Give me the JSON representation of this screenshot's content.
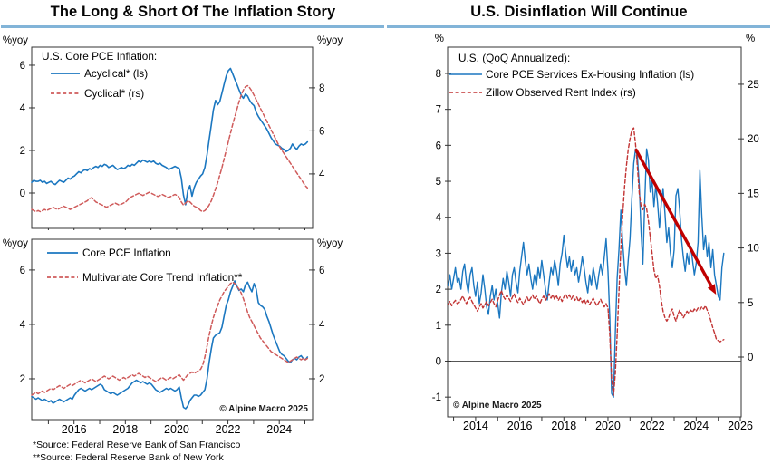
{
  "left_panel": {
    "title": "The Long & Short Of The Inflation Story",
    "footnotes": [
      "*Source: Federal Reserve Bank of San Francisco",
      "**Source: Federal Reserve Bank of New York"
    ]
  },
  "right_panel": {
    "title": "U.S. Disinflation Will Continue"
  },
  "copyright": "© Alpine Macro 2025",
  "colors": {
    "title_rule": "#82b4d8",
    "axis": "#333333",
    "blue": "#1b77c0",
    "red_soft": "#cf5b5b",
    "red_deep": "#c23434",
    "arrow": "#c00000"
  },
  "chart_data": [
    {
      "name": "us-core-pce-acyclical-vs-cyclical",
      "type": "line",
      "legend_heading": "U.S. Core PCE Inflation:",
      "x_range": [
        2014.35,
        2025.3
      ],
      "x_tick_labels": [
        2016,
        2018,
        2020,
        2022,
        2024
      ],
      "show_x_labels": false,
      "left_axis": {
        "label": "%yoy",
        "ticks": [
          0,
          2,
          4,
          6
        ],
        "range": [
          -1.66,
          6.85
        ]
      },
      "right_axis": {
        "label": "%yoy",
        "ticks": [
          4,
          6,
          8
        ],
        "range": [
          1.47,
          9.89
        ]
      },
      "zero_line": false,
      "series": [
        {
          "name": "Acyclical* (ls)",
          "axis": "left",
          "dashed": false,
          "color": "#1b77c0",
          "width": 1.6,
          "x_start": 2014.35,
          "x_step": 0.0833333,
          "y": [
            0.5,
            0.6,
            0.55,
            0.55,
            0.6,
            0.5,
            0.55,
            0.45,
            0.5,
            0.55,
            0.45,
            0.4,
            0.5,
            0.6,
            0.55,
            0.5,
            0.6,
            0.7,
            0.65,
            0.75,
            0.8,
            0.9,
            1.0,
            0.95,
            1.05,
            1.1,
            1.05,
            1.15,
            1.1,
            1.2,
            1.25,
            1.2,
            1.3,
            1.25,
            1.35,
            1.3,
            1.2,
            1.25,
            1.3,
            1.2,
            1.1,
            1.15,
            1.2,
            1.15,
            1.2,
            1.3,
            1.25,
            1.35,
            1.3,
            1.4,
            1.5,
            1.45,
            1.55,
            1.5,
            1.45,
            1.5,
            1.45,
            1.5,
            1.4,
            1.35,
            1.4,
            1.3,
            1.25,
            1.2,
            1.1,
            1.15,
            1.2,
            1.25,
            1.2,
            1.15,
            0.7,
            -0.1,
            -0.55,
            0.1,
            0.35,
            -0.15,
            0.25,
            0.5,
            0.65,
            0.8,
            0.9,
            1.2,
            1.8,
            2.5,
            3.2,
            3.9,
            4.35,
            4.15,
            4.3,
            4.7,
            5.1,
            5.5,
            5.75,
            5.85,
            5.6,
            5.35,
            5.1,
            4.85,
            4.6,
            4.45,
            4.65,
            4.55,
            4.35,
            4.2,
            4.1,
            3.8,
            3.6,
            3.45,
            3.3,
            3.15,
            3.0,
            2.8,
            2.6,
            2.45,
            2.3,
            2.25,
            2.2,
            2.1,
            2.05,
            1.95,
            2.0,
            2.1,
            2.3,
            2.15,
            2.05,
            2.2,
            2.3,
            2.25,
            2.3,
            2.4
          ]
        },
        {
          "name": "Cyclical* (rs)",
          "axis": "right",
          "dashed": true,
          "color": "#cf5b5b",
          "width": 1.5,
          "x_start": 2014.35,
          "x_step": 0.0833333,
          "y": [
            2.35,
            2.3,
            2.25,
            2.3,
            2.25,
            2.3,
            2.35,
            2.3,
            2.35,
            2.4,
            2.45,
            2.4,
            2.35,
            2.4,
            2.45,
            2.5,
            2.45,
            2.4,
            2.35,
            2.4,
            2.45,
            2.5,
            2.55,
            2.6,
            2.65,
            2.7,
            2.75,
            2.85,
            2.9,
            2.8,
            2.7,
            2.65,
            2.6,
            2.55,
            2.5,
            2.45,
            2.5,
            2.55,
            2.6,
            2.65,
            2.6,
            2.55,
            2.6,
            2.65,
            2.7,
            2.8,
            2.9,
            2.95,
            3.0,
            3.05,
            3.1,
            3.05,
            3.0,
            3.05,
            3.1,
            3.15,
            3.1,
            3.05,
            3.0,
            2.95,
            3.0,
            3.05,
            3.0,
            2.95,
            2.9,
            2.95,
            3.0,
            3.05,
            3.0,
            2.9,
            2.7,
            2.55,
            2.65,
            2.75,
            2.7,
            2.6,
            2.5,
            2.45,
            2.4,
            2.3,
            2.25,
            2.3,
            2.4,
            2.55,
            2.75,
            3.0,
            3.3,
            3.6,
            3.95,
            4.3,
            4.7,
            5.1,
            5.5,
            5.9,
            6.3,
            6.65,
            7.0,
            7.35,
            7.65,
            7.9,
            8.05,
            8.1,
            8.0,
            7.85,
            7.65,
            7.45,
            7.25,
            7.05,
            6.85,
            6.65,
            6.45,
            6.25,
            6.05,
            5.85,
            5.65,
            5.45,
            5.25,
            5.1,
            4.95,
            4.8,
            4.65,
            4.5,
            4.35,
            4.2,
            4.05,
            3.9,
            3.75,
            3.6,
            3.45,
            3.35
          ]
        }
      ]
    },
    {
      "name": "core-pce-vs-multivariate-core-trend",
      "type": "line",
      "legend_heading": null,
      "x_range": [
        2014.35,
        2025.3
      ],
      "x_tick_labels": [
        2016,
        2018,
        2020,
        2022,
        2024
      ],
      "show_x_labels": true,
      "left_axis": {
        "label": "%yoy",
        "ticks": [
          2,
          4,
          6
        ],
        "range": [
          0.5,
          7.13
        ]
      },
      "right_axis": {
        "label": "%yoy",
        "ticks": [
          2,
          4,
          6
        ],
        "range": [
          0.5,
          7.13
        ]
      },
      "zero_line": false,
      "series": [
        {
          "name": "Core PCE Inflation",
          "axis": "left",
          "dashed": false,
          "color": "#1b77c0",
          "width": 1.6,
          "x_start": 2014.35,
          "x_step": 0.0833333,
          "y": [
            1.35,
            1.3,
            1.25,
            1.3,
            1.25,
            1.2,
            1.25,
            1.2,
            1.15,
            1.2,
            1.1,
            1.15,
            1.2,
            1.25,
            1.2,
            1.15,
            1.2,
            1.25,
            1.3,
            1.25,
            1.4,
            1.5,
            1.6,
            1.65,
            1.6,
            1.55,
            1.6,
            1.65,
            1.6,
            1.65,
            1.7,
            1.75,
            1.8,
            1.75,
            1.6,
            1.55,
            1.5,
            1.45,
            1.5,
            1.45,
            1.4,
            1.45,
            1.5,
            1.55,
            1.6,
            1.65,
            1.75,
            1.85,
            1.9,
            1.95,
            1.9,
            1.85,
            1.9,
            1.85,
            1.8,
            1.85,
            1.8,
            1.7,
            1.6,
            1.55,
            1.5,
            1.55,
            1.6,
            1.65,
            1.6,
            1.65,
            1.6,
            1.55,
            1.6,
            1.7,
            1.3,
            0.95,
            0.9,
            1.0,
            1.2,
            1.3,
            1.4,
            1.4,
            1.35,
            1.4,
            1.5,
            1.6,
            2.0,
            2.6,
            3.1,
            3.5,
            3.6,
            3.65,
            3.7,
            3.9,
            4.3,
            4.7,
            4.9,
            5.2,
            5.4,
            5.6,
            5.4,
            5.25,
            5.3,
            5.2,
            5.45,
            5.55,
            5.35,
            5.2,
            5.5,
            5.3,
            4.8,
            4.7,
            4.65,
            4.55,
            4.3,
            4.1,
            3.85,
            3.6,
            3.4,
            3.2,
            3.0,
            2.9,
            2.85,
            2.75,
            2.65,
            2.6,
            2.7,
            2.75,
            2.7,
            2.8,
            2.85,
            2.75,
            2.7,
            2.8
          ]
        },
        {
          "name": "Multivariate Core Trend Inflation**",
          "axis": "right",
          "dashed": true,
          "color": "#cf5b5b",
          "width": 1.5,
          "x_start": 2014.35,
          "x_step": 0.0833333,
          "y": [
            1.4,
            1.45,
            1.5,
            1.45,
            1.5,
            1.55,
            1.5,
            1.55,
            1.6,
            1.65,
            1.6,
            1.65,
            1.7,
            1.75,
            1.7,
            1.65,
            1.7,
            1.75,
            1.8,
            1.75,
            1.8,
            1.85,
            1.9,
            1.95,
            1.9,
            1.85,
            1.9,
            1.95,
            2.0,
            1.95,
            1.9,
            1.95,
            2.0,
            2.05,
            2.1,
            2.05,
            2.0,
            2.05,
            2.1,
            2.05,
            2.0,
            1.95,
            2.0,
            2.05,
            2.0,
            2.05,
            2.1,
            2.15,
            2.1,
            2.15,
            2.2,
            2.15,
            2.1,
            2.05,
            2.1,
            2.05,
            2.0,
            1.95,
            1.9,
            1.95,
            2.0,
            2.05,
            2.0,
            1.95,
            2.0,
            2.05,
            2.0,
            2.05,
            2.1,
            2.15,
            2.05,
            1.95,
            2.05,
            2.15,
            2.2,
            2.25,
            2.2,
            2.25,
            2.3,
            2.35,
            2.5,
            2.8,
            3.2,
            3.6,
            3.95,
            4.25,
            4.5,
            4.7,
            4.9,
            5.05,
            5.2,
            5.3,
            5.4,
            5.5,
            5.55,
            5.5,
            5.4,
            5.3,
            5.15,
            4.95,
            4.7,
            4.45,
            4.25,
            4.1,
            3.95,
            3.8,
            3.65,
            3.5,
            3.4,
            3.3,
            3.2,
            3.1,
            3.0,
            2.95,
            2.9,
            2.85,
            2.8,
            2.75,
            2.7,
            2.65,
            2.6,
            2.65,
            2.7,
            2.75,
            2.8,
            2.75,
            2.7,
            2.75,
            2.7,
            2.75
          ]
        }
      ]
    },
    {
      "name": "us-disinflation-services-vs-zillow-rent",
      "type": "line",
      "legend_heading": "U.S. (QoQ Annualized):",
      "x_range": [
        2012.73,
        2026.04
      ],
      "x_tick_labels": [
        2014,
        2016,
        2018,
        2020,
        2022,
        2024,
        2026
      ],
      "show_x_labels": true,
      "left_axis": {
        "label": "%",
        "ticks": [
          -1,
          0,
          1,
          2,
          3,
          4,
          5,
          6,
          7,
          8
        ],
        "range": [
          -1.55,
          8.73
        ]
      },
      "right_axis": {
        "label": "%",
        "ticks": [
          0,
          5,
          10,
          15,
          20,
          25
        ],
        "range": [
          -5.48,
          28.4
        ]
      },
      "zero_line": true,
      "annotations": [
        {
          "type": "arrow",
          "axis": "left",
          "x1": 2021.25,
          "y1": 5.9,
          "x2": 2024.9,
          "y2": 1.85,
          "color": "#c00000"
        }
      ],
      "series": [
        {
          "name": "Core PCE Services Ex-Housing Inflation (ls)",
          "axis": "left",
          "dashed": false,
          "color": "#1b77c0",
          "width": 1.4,
          "x_start": 2012.75,
          "x_step": 0.0833333,
          "y": [
            2.1,
            2.4,
            2.0,
            2.3,
            2.6,
            2.2,
            2.3,
            2.0,
            2.5,
            2.7,
            2.2,
            1.9,
            2.4,
            2.6,
            2.1,
            1.8,
            2.2,
            1.6,
            1.9,
            2.4,
            2.0,
            1.5,
            1.3,
            1.8,
            2.1,
            1.7,
            2.0,
            1.6,
            1.2,
            1.9,
            2.3,
            2.0,
            2.5,
            2.2,
            1.8,
            2.4,
            2.6,
            2.2,
            1.9,
            2.5,
            2.9,
            3.3,
            2.8,
            2.4,
            2.7,
            2.3,
            2.0,
            2.4,
            2.1,
            2.6,
            2.3,
            2.8,
            2.4,
            2.0,
            1.7,
            2.2,
            2.6,
            2.4,
            2.8,
            2.5,
            2.1,
            2.7,
            3.0,
            3.5,
            3.0,
            2.6,
            2.9,
            2.5,
            2.8,
            2.4,
            2.6,
            2.2,
            2.5,
            2.9,
            2.6,
            2.2,
            1.9,
            2.4,
            2.1,
            2.6,
            2.3,
            2.0,
            2.4,
            2.7,
            2.4,
            2.9,
            3.4,
            2.5,
            1.2,
            -0.9,
            -1.0,
            0.8,
            2.3,
            3.1,
            4.2,
            3.3,
            2.6,
            2.1,
            2.8,
            3.4,
            4.5,
            5.5,
            5.9,
            5.7,
            4.9,
            3.6,
            2.7,
            4.4,
            5.9,
            5.6,
            4.7,
            5.0,
            4.3,
            4.9,
            4.4,
            3.7,
            4.4,
            4.8,
            4.1,
            3.3,
            3.7,
            3.0,
            2.6,
            3.1,
            4.6,
            4.8,
            4.2,
            3.4,
            2.9,
            2.5,
            3.0,
            2.7,
            3.2,
            2.8,
            2.4,
            2.7,
            3.3,
            5.3,
            4.1,
            3.1,
            3.5,
            2.9,
            3.3,
            2.6,
            3.1,
            2.4,
            2.1,
            1.8,
            1.7,
            2.6,
            3.0
          ]
        },
        {
          "name": "Zillow Observed Rent Index (rs)",
          "axis": "right",
          "dashed": true,
          "color": "#c23434",
          "width": 1.4,
          "x_start": 2012.75,
          "x_step": 0.0833333,
          "y": [
            4.8,
            5.1,
            4.7,
            5.0,
            5.2,
            4.9,
            5.0,
            5.3,
            5.6,
            5.2,
            4.9,
            5.2,
            5.5,
            5.1,
            4.8,
            4.5,
            4.2,
            4.6,
            4.9,
            4.5,
            4.8,
            5.1,
            4.7,
            5.0,
            5.3,
            4.9,
            4.6,
            5.2,
            5.7,
            6.1,
            5.6,
            5.3,
            5.7,
            5.4,
            5.1,
            5.5,
            5.8,
            5.3,
            5.0,
            5.4,
            5.1,
            4.8,
            5.2,
            5.5,
            5.1,
            5.4,
            5.7,
            5.3,
            5.6,
            5.2,
            4.9,
            5.3,
            5.6,
            5.2,
            5.5,
            5.8,
            5.4,
            5.7,
            5.3,
            5.6,
            5.2,
            5.5,
            5.1,
            5.5,
            5.8,
            5.4,
            5.7,
            5.3,
            5.6,
            5.2,
            5.5,
            5.1,
            5.4,
            5.0,
            5.3,
            4.9,
            5.2,
            4.8,
            5.1,
            5.4,
            5.0,
            4.7,
            5.0,
            5.3,
            4.9,
            4.6,
            4.9,
            4.5,
            2.0,
            -2.0,
            -3.5,
            -1.5,
            2.0,
            6.0,
            10.0,
            13.0,
            15.5,
            17.5,
            19.0,
            20.0,
            20.8,
            21.0,
            19.5,
            17.5,
            15.0,
            13.8,
            13.5,
            14.0,
            13.6,
            12.5,
            11.0,
            9.5,
            8.0,
            7.2,
            7.5,
            6.5,
            5.2,
            4.2,
            3.6,
            3.3,
            3.6,
            4.1,
            4.4,
            3.7,
            3.3,
            3.9,
            4.3,
            4.0,
            3.6,
            3.9,
            4.2,
            4.0,
            4.3,
            4.1,
            4.4,
            4.2,
            4.5,
            4.3,
            4.6,
            4.4,
            4.7,
            4.3,
            3.9,
            3.3,
            2.7,
            2.2,
            1.6,
            1.5,
            1.4,
            1.5,
            1.6
          ]
        }
      ]
    }
  ]
}
